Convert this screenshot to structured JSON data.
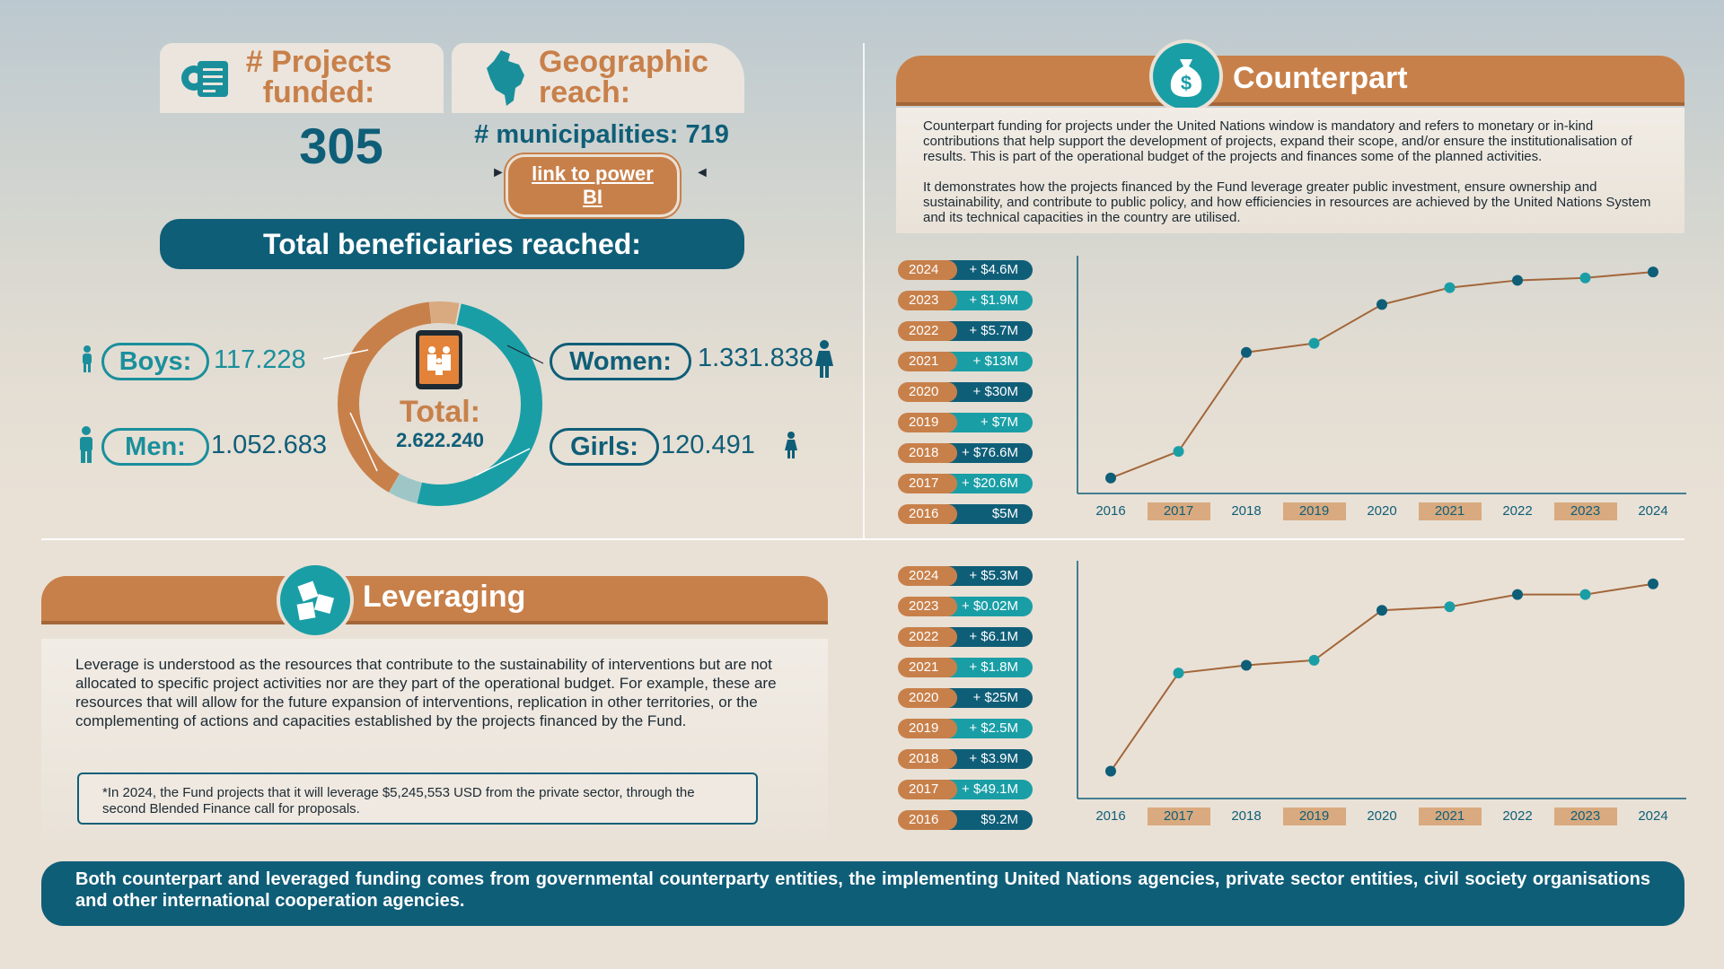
{
  "projects": {
    "title": "# Projects funded:",
    "value": "305"
  },
  "geo": {
    "title": "Geographic reach:",
    "municipalities": "# municipalities: 719",
    "link": "link to  power BI"
  },
  "beneficiaries": {
    "banner": "Total beneficiaries reached:",
    "total_label": "Total:",
    "total_value": "2.622.240",
    "boys_label": "Boys:",
    "boys_value": "117.228",
    "men_label": "Men:",
    "men_value": "1.052.683",
    "women_label": "Women:",
    "women_value": "1.331.838",
    "girls_label": "Girls:",
    "girls_value": "120.491",
    "colors": {
      "teal": "#1a9ea6",
      "brown": "#c8804a",
      "tan": "#d9aa7f",
      "light": "#9fc6c7"
    }
  },
  "counterpart": {
    "title": "Counterpart",
    "text1": "Counterpart funding for projects under the United Nations window is mandatory and refers to monetary or in-kind contributions that help support the development of projects, expand their scope, and/or ensure the institutionalisation of results. This is part of the operational budget of the projects and finances some of the planned activities.",
    "text2": "It demonstrates how the projects financed by the Fund leverage greater public investment, ensure ownership and sustainability, and contribute to public policy, and how efficiencies in resources are achieved by the United Nations System and its technical capacities in the country are utilised."
  },
  "leveraging": {
    "title": "Leveraging",
    "text": "Leverage is understood as the resources that contribute to the sustainability of interventions but are not allocated to specific project activities nor are they part of the operational budget. For example, these are resources that will allow for the future expansion of interventions, replication in other territories, or the complementing of actions and capacities established by the projects financed by the Fund.",
    "note": "*In 2024, the Fund projects that it will leverage $5,245,553 USD from the private sector, through the second Blended Finance call for proposals."
  },
  "footer": "Both counterpart and leveraged funding comes from governmental counterparty entities, the implementing United Nations agencies, private sector entities, civil society organisations and other international cooperation agencies.",
  "chart_data": [
    {
      "type": "line",
      "categories": [
        "2016",
        "2017",
        "2018",
        "2019",
        "2020",
        "2021",
        "2022",
        "2023",
        "2024"
      ],
      "year_labels": [
        "2024",
        "2023",
        "2022",
        "2021",
        "2020",
        "2019",
        "2018",
        "2017",
        "2016"
      ],
      "amount_labels": [
        "+   $4.6M",
        "+   $1.9M",
        "+   $5.7M",
        "+    $13M",
        "+    $30M",
        "+      $7M",
        "+ $76.6M",
        "+ $20.6M",
        "$5M"
      ],
      "values": [
        5,
        25.6,
        102.2,
        109.2,
        139.2,
        152.2,
        157.9,
        159.8,
        164.4
      ],
      "ylim": [
        0,
        170
      ],
      "colors": {
        "line": "#a3663a",
        "point_dark": "#0f5e78",
        "point_light": "#1a9ea6",
        "axis": "#0f5e78"
      }
    },
    {
      "type": "line",
      "categories": [
        "2016",
        "2017",
        "2018",
        "2019",
        "2020",
        "2021",
        "2022",
        "2023",
        "2024"
      ],
      "year_labels": [
        "2024",
        "2023",
        "2022",
        "2021",
        "2020",
        "2019",
        "2018",
        "2017",
        "2016"
      ],
      "amount_labels": [
        "+   $5.3M",
        "+ $0.02M",
        "+   $6.1M",
        "+   $1.8M",
        "+    $25M",
        "+   $2.5M",
        "+   $3.9M",
        "+ $49.1M",
        "$9.2M"
      ],
      "values": [
        9.2,
        58.3,
        62.2,
        64.7,
        89.7,
        91.5,
        97.6,
        97.62,
        102.92
      ],
      "ylim": [
        0,
        110
      ],
      "colors": {
        "line": "#a3663a",
        "point_dark": "#0f5e78",
        "point_light": "#1a9ea6",
        "axis": "#0f5e78"
      }
    }
  ]
}
